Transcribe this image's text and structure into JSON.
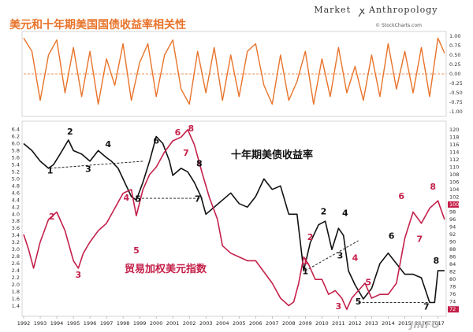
{
  "chart_data": [
    {
      "type": "line",
      "title": "美元和十年期美国国债收益率相关性",
      "ylim": [
        -1.0,
        1.0
      ],
      "ytick_labels": [
        "1.00",
        "0.75",
        "0.50",
        "0.25",
        "0.00",
        "-0.25",
        "-0.50",
        "-0.75",
        "-1.00"
      ],
      "grid": false,
      "reference_lines": [
        0.0
      ],
      "color": "#e8732a",
      "series": [
        {
          "x": [
            1992.0,
            1992.5,
            1993.0,
            1993.5,
            1994.0,
            1994.5,
            1995.0,
            1995.5,
            1996.0,
            1996.5,
            1997.0,
            1997.5,
            1998.0,
            1998.5,
            1999.0,
            1999.5,
            2000.0,
            2000.5,
            2001.0,
            2001.5,
            2002.0,
            2002.5,
            2003.0,
            2003.5,
            2004.0,
            2004.5,
            2005.0,
            2005.5,
            2006.0,
            2006.5,
            2007.0,
            2007.5,
            2008.0,
            2008.5,
            2009.0,
            2009.5,
            2010.0,
            2010.5,
            2011.0,
            2011.5,
            2012.0,
            2012.5,
            2013.0,
            2013.5,
            2014.0,
            2014.5,
            2015.0,
            2015.5,
            2016.0,
            2016.5,
            2017.0,
            2017.4
          ],
          "y": [
            0.95,
            0.6,
            -0.7,
            0.5,
            0.9,
            -0.5,
            0.7,
            -0.6,
            0.6,
            -0.8,
            0.4,
            -0.3,
            0.8,
            -0.7,
            0.3,
            0.8,
            -0.6,
            0.5,
            0.9,
            -0.4,
            -0.8,
            0.6,
            -0.5,
            0.7,
            -0.7,
            0.5,
            -0.6,
            0.6,
            0.8,
            -0.3,
            -0.8,
            0.5,
            -0.7,
            -0.2,
            0.6,
            -0.8,
            0.4,
            -0.6,
            0.7,
            -0.5,
            0.2,
            -0.7,
            0.5,
            -0.6,
            0.8,
            -0.4,
            0.6,
            -0.5,
            0.7,
            -0.6,
            0.95,
            0.55
          ]
        }
      ]
    },
    {
      "type": "line",
      "xlim": [
        1992,
        2017.5
      ],
      "x_tick_labels": [
        "1992",
        "1993",
        "1994",
        "1995",
        "1996",
        "1997",
        "1998",
        "1999",
        "2000",
        "2001",
        "2002",
        "2003",
        "2004",
        "2005",
        "2006",
        "2007",
        "2008",
        "2009",
        "2010",
        "2011",
        "2012",
        "2013",
        "2014",
        "2015",
        "2016",
        "2017"
      ],
      "ylim_left": [
        1.2,
        6.5
      ],
      "y_left_tick_labels": [
        "1.4",
        "1.6",
        "1.8",
        "2.0",
        "2.2",
        "2.4",
        "2.6",
        "2.8",
        "3.0",
        "3.2",
        "3.4",
        "3.6",
        "3.8",
        "4.0",
        "4.2",
        "4.4",
        "4.6",
        "4.8",
        "5.0",
        "5.2",
        "5.4",
        "5.6",
        "5.8",
        "6.0",
        "6.2",
        "6.4"
      ],
      "ylim_right": [
        71,
        121
      ],
      "y_right_tick_labels": [
        "74",
        "76",
        "78",
        "80",
        "82",
        "84",
        "86",
        "88",
        "90",
        "92",
        "94",
        "96",
        "98",
        "100",
        "102",
        "104",
        "106",
        "108",
        "110",
        "112",
        "114",
        "116",
        "118",
        "120"
      ],
      "right_markers": [
        "100",
        "72"
      ],
      "series": [
        {
          "name": "十年期美债收益率",
          "axis": "left",
          "color": "#111111",
          "x": [
            1992.0,
            1992.5,
            1993.0,
            1993.5,
            1993.8,
            1994.2,
            1994.7,
            1995.0,
            1995.5,
            1996.0,
            1996.5,
            1997.0,
            1997.3,
            1997.7,
            1998.0,
            1998.5,
            1998.8,
            1999.2,
            1999.6,
            2000.0,
            2000.4,
            2000.8,
            2001.0,
            2001.5,
            2001.9,
            2002.3,
            2002.7,
            2003.0,
            2003.5,
            2004.0,
            2004.5,
            2005.0,
            2005.5,
            2006.0,
            2006.5,
            2007.0,
            2007.5,
            2008.0,
            2008.5,
            2008.9,
            2009.3,
            2009.8,
            2010.2,
            2010.6,
            2011.0,
            2011.3,
            2011.6,
            2012.0,
            2012.5,
            2013.0,
            2013.5,
            2014.0,
            2014.5,
            2015.0,
            2015.5,
            2016.0,
            2016.5,
            2016.8,
            2017.0,
            2017.4
          ],
          "y": [
            6.0,
            5.8,
            5.5,
            5.3,
            5.4,
            5.7,
            6.1,
            5.8,
            5.7,
            5.5,
            5.8,
            5.6,
            5.5,
            5.3,
            5.0,
            4.5,
            4.4,
            4.9,
            5.5,
            6.2,
            6.0,
            5.5,
            5.1,
            5.3,
            5.2,
            4.9,
            4.5,
            4.0,
            4.2,
            4.4,
            4.6,
            4.3,
            4.2,
            4.5,
            5.0,
            4.7,
            4.8,
            4.0,
            4.0,
            2.4,
            3.2,
            3.7,
            3.8,
            3.0,
            3.6,
            3.4,
            2.4,
            2.0,
            1.6,
            1.9,
            2.6,
            2.9,
            2.6,
            2.3,
            2.3,
            2.2,
            1.5,
            1.5,
            2.4,
            2.4
          ]
        },
        {
          "name": "贸易加权美元指数",
          "axis": "right",
          "color": "#c4204a",
          "x": [
            1992.0,
            1992.3,
            1992.6,
            1993.0,
            1993.5,
            1994.0,
            1994.5,
            1995.0,
            1995.3,
            1995.6,
            1996.0,
            1996.5,
            1997.0,
            1997.5,
            1998.0,
            1998.5,
            1998.8,
            1999.2,
            1999.6,
            2000.0,
            2000.5,
            2001.0,
            2001.5,
            2001.9,
            2002.3,
            2002.8,
            2003.2,
            2003.7,
            2004.0,
            2004.5,
            2005.0,
            2005.5,
            2006.0,
            2006.5,
            2007.0,
            2007.5,
            2008.0,
            2008.3,
            2008.6,
            2008.9,
            2009.2,
            2009.6,
            2010.0,
            2010.4,
            2010.8,
            2011.2,
            2011.5,
            2011.8,
            2012.2,
            2012.6,
            2013.0,
            2013.5,
            2014.0,
            2014.5,
            2015.0,
            2015.5,
            2016.0,
            2016.5,
            2017.0,
            2017.4
          ],
          "y": [
            92,
            88,
            83,
            90,
            96,
            98,
            93,
            85,
            83,
            87,
            90,
            93,
            95,
            99,
            103,
            104,
            97,
            104,
            108,
            110,
            114,
            117,
            118,
            120,
            116,
            108,
            102,
            96,
            89,
            87,
            86,
            85,
            85,
            82,
            79,
            75,
            73,
            74,
            79,
            86,
            84,
            80,
            80,
            76,
            77,
            75,
            72,
            75,
            77,
            79,
            75,
            76,
            76,
            79,
            91,
            98,
            95,
            99,
            101,
            96
          ]
        }
      ],
      "annotations": {
        "labels": [
          {
            "text": "十年期美债收益率",
            "color": "#111111"
          },
          {
            "text": "贸易加权美元指数",
            "color": "#c4204a"
          }
        ],
        "black_numbers": [
          {
            "text": "1",
            "x": 1993.6,
            "y": 5.15
          },
          {
            "text": "2",
            "x": 1994.8,
            "y": 6.25
          },
          {
            "text": "3",
            "x": 1995.9,
            "y": 5.2
          },
          {
            "text": "4",
            "x": 1997.1,
            "y": 5.9
          },
          {
            "text": "5",
            "x": 1998.9,
            "y": 4.35
          },
          {
            "text": "6",
            "x": 2000.0,
            "y": 6.0
          },
          {
            "text": "7",
            "x": 2002.5,
            "y": 4.35
          },
          {
            "text": "8",
            "x": 2002.6,
            "y": 5.35
          },
          {
            "text": "1",
            "x": 2009.0,
            "y": 2.3
          },
          {
            "text": "2",
            "x": 2010.1,
            "y": 4.0
          },
          {
            "text": "3",
            "x": 2011.1,
            "y": 2.75
          },
          {
            "text": "4",
            "x": 2011.4,
            "y": 3.95
          },
          {
            "text": "5",
            "x": 2012.2,
            "y": 1.45
          },
          {
            "text": "6",
            "x": 2014.2,
            "y": 3.3
          },
          {
            "text": "7",
            "x": 2016.3,
            "y": 1.3
          },
          {
            "text": "8",
            "x": 2016.9,
            "y": 2.6
          }
        ],
        "red_numbers": [
          {
            "text": "2",
            "x": 1993.7,
            "y": 96
          },
          {
            "text": "3",
            "x": 1995.3,
            "y": 80.5
          },
          {
            "text": "4",
            "x": 1998.2,
            "y": 101
          },
          {
            "text": "5",
            "x": 1998.8,
            "y": 87
          },
          {
            "text": "6",
            "x": 2001.3,
            "y": 118.5
          },
          {
            "text": "7",
            "x": 2001.8,
            "y": 113
          },
          {
            "text": "8",
            "x": 2002.1,
            "y": 119.5
          },
          {
            "text": "1",
            "x": 2009.0,
            "y": 84
          },
          {
            "text": "2",
            "x": 2009.3,
            "y": 90.5
          },
          {
            "text": "3",
            "x": 2011.0,
            "y": 72
          },
          {
            "text": "4",
            "x": 2012.0,
            "y": 85
          },
          {
            "text": "5",
            "x": 2012.8,
            "y": 78.5
          },
          {
            "text": "6",
            "x": 2014.8,
            "y": 101.5
          },
          {
            "text": "7",
            "x": 2015.9,
            "y": 90
          },
          {
            "text": "8",
            "x": 2016.7,
            "y": 104
          }
        ],
        "trendlines": [
          {
            "style": "dashed",
            "axis": "left",
            "from": {
              "x": 1993.6,
              "y": 5.3
            },
            "to": {
              "x": 1999.2,
              "y": 5.5
            }
          },
          {
            "style": "dashed",
            "axis": "left",
            "from": {
              "x": 1998.9,
              "y": 4.45
            },
            "to": {
              "x": 2002.8,
              "y": 4.45
            }
          },
          {
            "style": "dashed",
            "axis": "left",
            "from": {
              "x": 2009.0,
              "y": 2.4
            },
            "to": {
              "x": 2012.2,
              "y": 3.25
            }
          },
          {
            "style": "dashed",
            "axis": "left",
            "from": {
              "x": 2012.2,
              "y": 1.5
            },
            "to": {
              "x": 2016.5,
              "y": 1.5
            }
          }
        ]
      }
    }
  ],
  "header": {
    "brand_left": "Market",
    "brand_right": "Anthropology",
    "credit": "© StockCharts.com",
    "watermark": "JINFO"
  }
}
